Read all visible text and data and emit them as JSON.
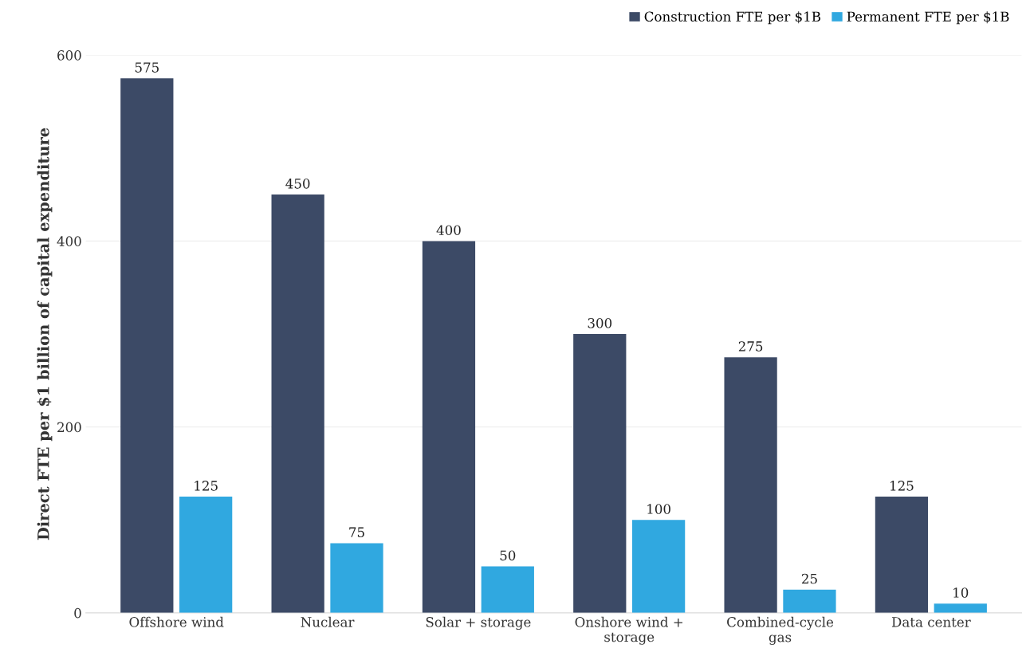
{
  "chart_data": {
    "type": "bar",
    "ylabel": "Direct FTE per $1 billion of capital expenditure",
    "categories": [
      "Offshore wind",
      "Nuclear",
      "Solar + storage",
      "Onshore wind +\nstorage",
      "Combined-cycle\ngas",
      "Data center"
    ],
    "series": [
      {
        "name": "Construction FTE per $1B",
        "color": "#3c4a66",
        "values": [
          575,
          450,
          400,
          300,
          275,
          125
        ]
      },
      {
        "name": "Permanent FTE per $1B",
        "color": "#30a8e0",
        "values": [
          125,
          75,
          50,
          100,
          25,
          10
        ]
      }
    ],
    "ylim": [
      0,
      600
    ],
    "yticks": [
      0,
      200,
      400,
      600
    ],
    "grid": "y",
    "legend": "top right",
    "data_labels": true
  }
}
